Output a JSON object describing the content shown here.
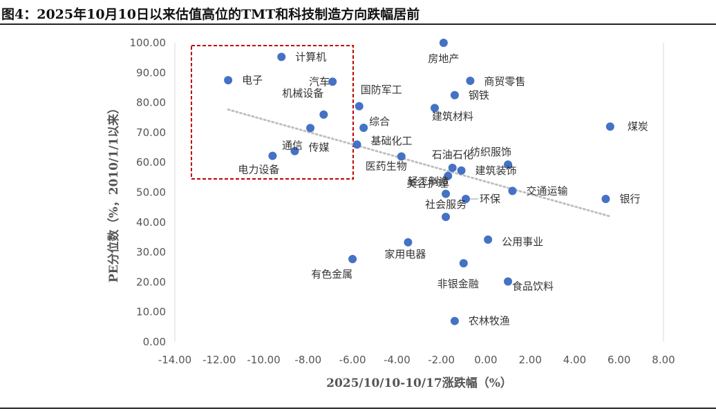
{
  "title": "图4：2025年10月10日以来估值高位的TMT和科技制造方向跌幅居前",
  "chart_data": {
    "type": "scatter",
    "xlabel": "2025/10/10-10/17涨跌幅（%）",
    "ylabel": "PE分位数（%，2010/1/1以来）",
    "xlim": [
      -14,
      8
    ],
    "ylim": [
      0,
      100
    ],
    "x_ticks": [
      "-14.00",
      "-12.00",
      "-10.00",
      "-8.00",
      "-6.00",
      "-4.00",
      "-2.00",
      "0.00",
      "2.00",
      "4.00",
      "6.00",
      "8.00"
    ],
    "y_ticks": [
      "0.00",
      "10.00",
      "20.00",
      "30.00",
      "40.00",
      "50.00",
      "60.00",
      "70.00",
      "80.00",
      "90.00",
      "100.00"
    ],
    "marker_color": "#4472C4",
    "trendline_color": "#BFBFBF",
    "highlight_box_color": "#C00000",
    "points": [
      {
        "name": "计算机",
        "x": -9.2,
        "y": 95.3
      },
      {
        "name": "电子",
        "x": -11.6,
        "y": 87.5
      },
      {
        "name": "汽车",
        "x": -6.9,
        "y": 87.0
      },
      {
        "name": "机械设备",
        "x": -7.3,
        "y": 76.0
      },
      {
        "name": "通信",
        "x": -7.9,
        "y": 71.5
      },
      {
        "name": "传媒",
        "x": -8.6,
        "y": 63.8
      },
      {
        "name": "电力设备",
        "x": -9.6,
        "y": 62.2
      },
      {
        "name": "国防军工",
        "x": -5.7,
        "y": 78.8
      },
      {
        "name": "综合",
        "x": -5.5,
        "y": 71.6
      },
      {
        "name": "基础化工",
        "x": -5.8,
        "y": 66.0
      },
      {
        "name": "医药生物",
        "x": -3.8,
        "y": 62.0
      },
      {
        "name": "房地产",
        "x": -1.9,
        "y": 100.0
      },
      {
        "name": "商贸零售",
        "x": -0.7,
        "y": 87.3
      },
      {
        "name": "钢铁",
        "x": -1.4,
        "y": 82.5
      },
      {
        "name": "建筑材料",
        "x": -2.3,
        "y": 78.2
      },
      {
        "name": "石油石化",
        "x": -1.5,
        "y": 58.2
      },
      {
        "name": "纺织服饰",
        "x": 1.0,
        "y": 59.3
      },
      {
        "name": "建筑装饰",
        "x": -1.1,
        "y": 57.3
      },
      {
        "name": "美容护理",
        "x": -1.7,
        "y": 55.5
      },
      {
        "name": "交通运输",
        "x": 1.2,
        "y": 50.5
      },
      {
        "name": "环保",
        "x": -0.9,
        "y": 47.8
      },
      {
        "name": "轻工制造",
        "x": -1.8,
        "y": 49.5
      },
      {
        "name": "煤炭",
        "x": 5.6,
        "y": 72.0
      },
      {
        "name": "银行",
        "x": 5.4,
        "y": 47.8
      },
      {
        "name": "社会服务",
        "x": -1.8,
        "y": 41.8
      },
      {
        "name": "公用事业",
        "x": 0.1,
        "y": 34.2
      },
      {
        "name": "家用电器",
        "x": -3.5,
        "y": 33.3
      },
      {
        "name": "有色金属",
        "x": -6.0,
        "y": 27.7
      },
      {
        "name": "非银金融",
        "x": -1.0,
        "y": 26.3
      },
      {
        "name": "食品饮料",
        "x": 1.0,
        "y": 20.2
      },
      {
        "name": "农林牧渔",
        "x": -1.4,
        "y": 7.0
      }
    ]
  }
}
